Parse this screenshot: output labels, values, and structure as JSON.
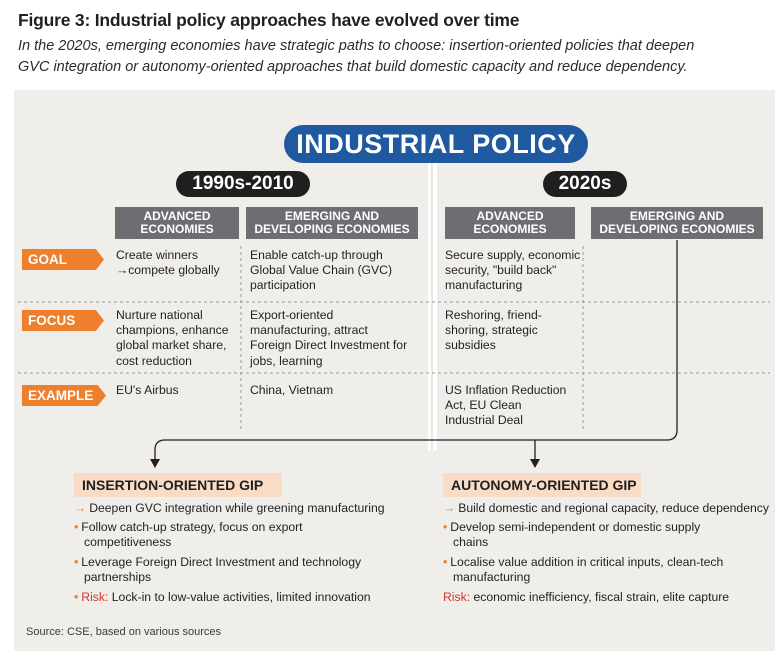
{
  "figure": {
    "title": "Figure 3: Industrial policy approaches have evolved over time",
    "subtitle_lines": [
      "In the 2020s, emerging economies have strategic paths to choose: insertion-oriented policies that deepen",
      "GVC integration or autonomy-oriented approaches that build domestic capacity and reduce dependency."
    ]
  },
  "diagram": {
    "main_label": "INDUSTRIAL POLICY",
    "eras": [
      "1990s-2010",
      "2020s"
    ],
    "columns": [
      {
        "lines": [
          "ADVANCED",
          "ECONOMIES"
        ]
      },
      {
        "lines": [
          "EMERGING AND",
          "DEVELOPING ECONOMIES"
        ]
      },
      {
        "lines": [
          "ADVANCED",
          "ECONOMIES"
        ]
      },
      {
        "lines": [
          "EMERGING AND",
          "DEVELOPING ECONOMIES"
        ]
      }
    ],
    "rows": [
      {
        "label": "GOAL",
        "cells": [
          [
            "Create winners",
            "→compete globally"
          ],
          [
            "Enable catch-up through",
            "Global Value Chain (GVC)",
            "participation"
          ],
          [
            "Secure supply, economic",
            "security, \"build back\"",
            "manufacturing"
          ]
        ]
      },
      {
        "label": "FOCUS",
        "cells": [
          [
            "Nurture national",
            "champions, enhance",
            "global market share,",
            "cost reduction"
          ],
          [
            "Export-oriented",
            "manufacturing, attract",
            "Foreign Direct Investment for",
            "jobs, learning"
          ],
          [
            "Reshoring, friend-",
            "shoring, strategic",
            "subsidies"
          ]
        ]
      },
      {
        "label": "EXAMPLE",
        "cells": [
          [
            "EU's Airbus"
          ],
          [
            "China, Vietnam"
          ],
          [
            "US Inflation Reduction",
            "Act, EU Clean",
            "Industrial Deal"
          ]
        ]
      }
    ]
  },
  "gip": {
    "insertion": {
      "title": "INSERTION-ORIENTED GIP",
      "items": [
        {
          "bullet": "→",
          "lines": [
            "Deepen GVC integration while greening manufacturing"
          ]
        },
        {
          "bullet": "•",
          "lines": [
            "Follow catch-up strategy, focus on export",
            "competitiveness"
          ]
        },
        {
          "bullet": "•",
          "lines": [
            "Leverage Foreign Direct Investment and technology",
            "partnerships"
          ]
        }
      ],
      "risk_label": "Risk:",
      "risk_text": "Lock-in to low-value activities, limited innovation"
    },
    "autonomy": {
      "title": "AUTONOMY-ORIENTED GIP",
      "items": [
        {
          "bullet": "→",
          "lines": [
            "Build domestic and regional capacity, reduce dependency"
          ]
        },
        {
          "bullet": "•",
          "lines": [
            "Develop semi-independent or domestic supply",
            "chains"
          ]
        },
        {
          "bullet": "•",
          "lines": [
            "Localise value addition in critical inputs, clean-tech",
            "manufacturing"
          ]
        }
      ],
      "risk_label": "Risk:",
      "risk_text": "economic inefficiency, fiscal strain, elite capture"
    }
  },
  "source": "Source: CSE, based on various sources",
  "colors": {
    "accent_blue": "#1f5aa0",
    "accent_orange": "#ee7f2d",
    "header_gray": "#6d6e71",
    "gip_header_fill": "#f9dcc6",
    "risk_red": "#d4352c",
    "panel_background": "#efeeea"
  }
}
